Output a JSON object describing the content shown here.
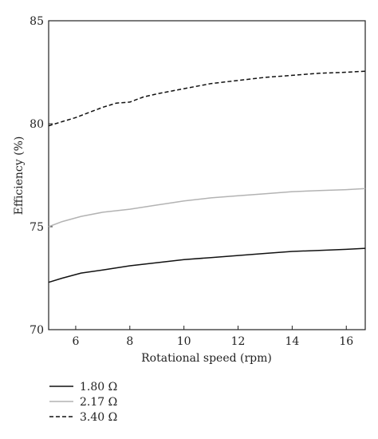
{
  "chart_data": {
    "type": "line",
    "xlabel": "Rotational speed (rpm)",
    "ylabel": "Efficiency (%)",
    "xlim": [
      5,
      16.7
    ],
    "ylim": [
      70,
      85
    ],
    "xticks": [
      6,
      8,
      10,
      12,
      14,
      16
    ],
    "yticks": [
      70,
      75,
      80,
      85
    ],
    "grid": false,
    "legend_position": "bottom-left",
    "series": [
      {
        "name": "1.80 Ω",
        "color": "#111111",
        "dash": "solid",
        "x": [
          5,
          5.5,
          6.2,
          7,
          8,
          9,
          10,
          11,
          12,
          13,
          14,
          15,
          16,
          16.7
        ],
        "y": [
          72.3,
          72.5,
          72.75,
          72.9,
          73.1,
          73.25,
          73.4,
          73.5,
          73.6,
          73.7,
          73.8,
          73.85,
          73.9,
          73.95
        ]
      },
      {
        "name": "2.17 Ω",
        "color": "#b3b3b3",
        "dash": "solid",
        "x": [
          5,
          5.5,
          6.2,
          7,
          8,
          9,
          10,
          11,
          12,
          13,
          14,
          15,
          16,
          16.7
        ],
        "y": [
          75.0,
          75.25,
          75.5,
          75.7,
          75.85,
          76.05,
          76.25,
          76.4,
          76.5,
          76.6,
          76.7,
          76.75,
          76.8,
          76.85
        ]
      },
      {
        "name": "3.40 Ω",
        "color": "#111111",
        "dash": "dashed",
        "x": [
          5,
          5.5,
          6,
          6.5,
          7,
          7.5,
          8,
          8.5,
          9,
          10,
          11,
          12,
          13,
          14,
          15,
          16,
          16.7
        ],
        "y": [
          79.9,
          80.1,
          80.3,
          80.55,
          80.8,
          81.0,
          81.05,
          81.3,
          81.45,
          81.7,
          81.95,
          82.1,
          82.25,
          82.35,
          82.45,
          82.5,
          82.55
        ]
      }
    ]
  }
}
